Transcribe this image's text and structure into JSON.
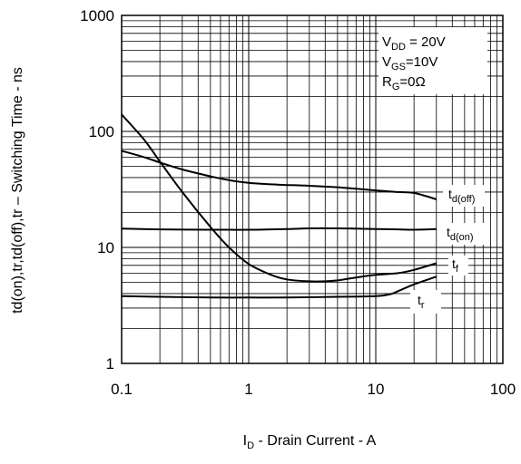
{
  "chart_data": {
    "type": "line",
    "x_scale": "log",
    "y_scale": "log",
    "xlim": [
      0.1,
      100
    ],
    "ylim": [
      1,
      1000
    ],
    "grid": true,
    "x_ticks": [
      "0.1",
      "1",
      "10",
      "100"
    ],
    "y_ticks": [
      "1",
      "10",
      "100",
      "1000"
    ],
    "xlabel": {
      "main": "I",
      "sub": "D",
      "rest": " - Drain Current - A"
    },
    "ylabel": "td(on),tr,td(off),tr – Switching Time - ns",
    "annotation": [
      {
        "main": "V",
        "sub": "DD",
        "rest": " = 20V"
      },
      {
        "main": "V",
        "sub": "GS",
        "rest": "=10V"
      },
      {
        "main": "R",
        "sub": "G",
        "rest": "=0Ω"
      }
    ],
    "series": [
      {
        "label_main": "t",
        "label_sub": "d(off)",
        "x": [
          0.1,
          0.15,
          0.2,
          0.3,
          0.5,
          0.7,
          1,
          1.5,
          2,
          3,
          5,
          7,
          10,
          15,
          20,
          30
        ],
        "y": [
          68,
          60,
          54,
          47,
          41,
          38,
          36,
          35,
          34.5,
          34,
          33,
          32,
          31,
          30,
          29.5,
          26
        ]
      },
      {
        "label_main": "t",
        "label_sub": "d(on)",
        "x": [
          0.1,
          0.2,
          0.5,
          1,
          2,
          3,
          5,
          7,
          10,
          15,
          20,
          30
        ],
        "y": [
          14.5,
          14.3,
          14.2,
          14.2,
          14.4,
          14.6,
          14.6,
          14.5,
          14.4,
          14.3,
          14.2,
          14.4
        ]
      },
      {
        "label_main": "t",
        "label_sub": "f",
        "x": [
          0.1,
          0.15,
          0.2,
          0.3,
          0.5,
          0.7,
          1,
          1.5,
          2,
          3,
          4,
          5,
          7,
          10,
          15,
          20,
          30
        ],
        "y": [
          140,
          85,
          55,
          30,
          15,
          10,
          7.2,
          5.8,
          5.3,
          5.1,
          5.1,
          5.2,
          5.5,
          5.8,
          6.0,
          6.4,
          7.3
        ]
      },
      {
        "label_main": "t",
        "label_sub": "r",
        "x": [
          0.1,
          0.2,
          0.5,
          1,
          2,
          5,
          10,
          13,
          15,
          20,
          30
        ],
        "y": [
          3.8,
          3.75,
          3.7,
          3.7,
          3.7,
          3.75,
          3.8,
          3.95,
          4.2,
          4.8,
          5.6
        ]
      }
    ]
  }
}
